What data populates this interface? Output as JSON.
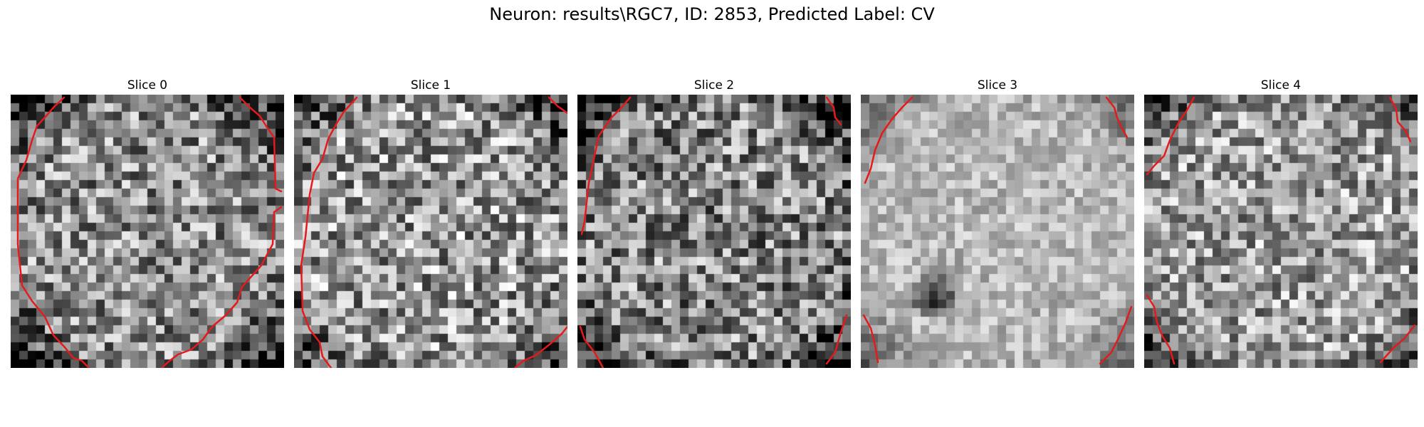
{
  "figure": {
    "title": "Neuron: results\\RGC7, ID: 2853, Predicted Label: CV"
  },
  "colors": {
    "contour": "#e41a1c"
  },
  "slices": [
    {
      "title": "Slice 0"
    },
    {
      "title": "Slice 1"
    },
    {
      "title": "Slice 2"
    },
    {
      "title": "Slice 3"
    },
    {
      "title": "Slice 4"
    }
  ]
}
